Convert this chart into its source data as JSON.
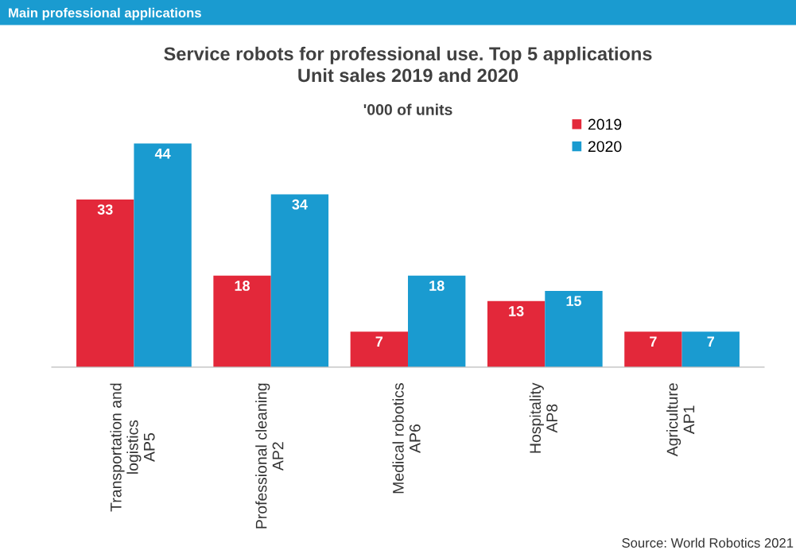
{
  "chart_data": {
    "type": "bar",
    "title": "Service robots for professional use. Top 5 applications\nUnit sales 2019 and 2020",
    "subtitle": "'000 of units",
    "categories": [
      "Transportation and\nlogistics\nAP5",
      "Professional cleaning\nAP2",
      "Medical robotics\nAP6",
      "Hospitality\nAP8",
      "Agriculture\nAP1"
    ],
    "series": [
      {
        "name": "2019",
        "color": "#e3283a",
        "values": [
          33,
          18,
          7,
          13,
          7
        ]
      },
      {
        "name": "2020",
        "color": "#1a9bd0",
        "values": [
          44,
          34,
          18,
          15,
          7
        ]
      }
    ],
    "data_labels": true,
    "legend": "top right",
    "tick_labels": "x",
    "grid": false,
    "annotations": [
      "Main professional applications",
      "Source: World Robotics 2021"
    ]
  }
}
